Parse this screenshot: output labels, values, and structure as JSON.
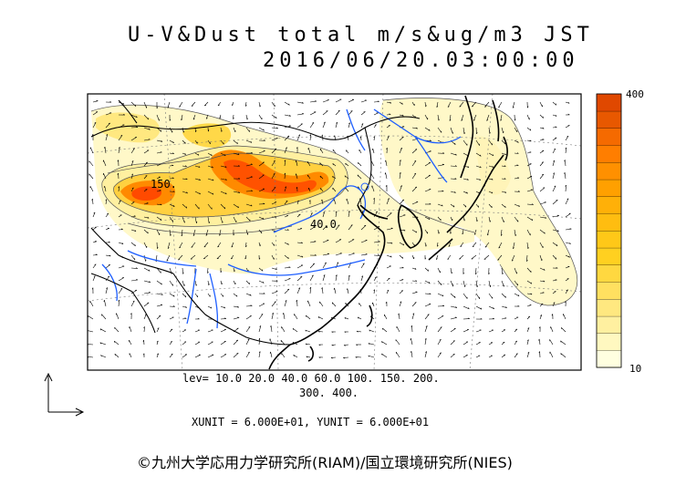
{
  "title": {
    "line1": "U-V&Dust total m/s&ug/m3 JST",
    "line2": "2016/06/20.03:00:00"
  },
  "map_labels": {
    "contour_150": "150.",
    "contour_40": "40.0"
  },
  "colorbar": {
    "max_label": "400",
    "min_label": "10",
    "colors": [
      "#ffffe0",
      "#fff8c0",
      "#fff0a0",
      "#ffe880",
      "#ffe060",
      "#ffd840",
      "#ffd020",
      "#ffc818",
      "#ffbd10",
      "#ffb008",
      "#ffa000",
      "#ff9000",
      "#ff7e00",
      "#f56a00",
      "#e85800",
      "#e04800"
    ]
  },
  "legend": {
    "levels_line1": "lev= 10.0 20.0 40.0 60.0 100. 150. 200.",
    "levels_line2": "300. 400.",
    "units_line": "XUNIT = 6.000E+01, YUNIT = 6.000E+01"
  },
  "credit": "©九州大学応用力学研究所(RIAM)/国立環境研究所(NIES)",
  "colors": {
    "land_outline": "#000000",
    "rivers": "#1f5fff",
    "dust_low": "#fff6c0",
    "dust_mid": "#ffc020",
    "dust_high": "#ff5a00"
  }
}
